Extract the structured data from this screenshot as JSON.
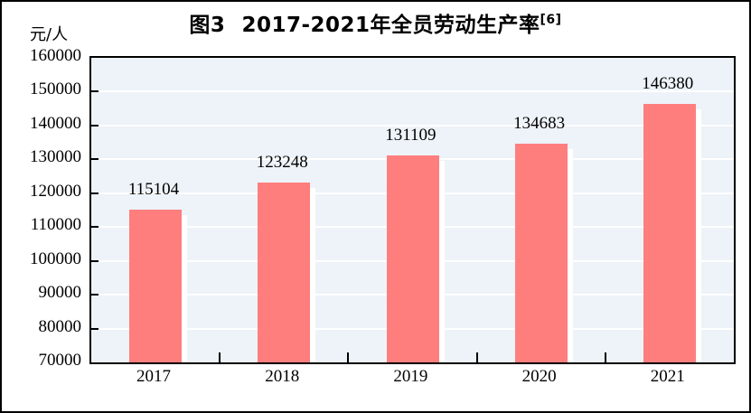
{
  "figure": {
    "title_prefix": "图3",
    "title_main": "2017-2021年全员劳动生产率",
    "title_sup": "[6]",
    "unit_label": "元/人"
  },
  "chart_data": {
    "type": "bar",
    "title": "图3 2017-2021年全员劳动生产率[6]",
    "categories": [
      "2017",
      "2018",
      "2019",
      "2020",
      "2021"
    ],
    "values": [
      115104,
      123248,
      131109,
      134683,
      146380
    ],
    "data_labels": [
      "115104",
      "123248",
      "131109",
      "134683",
      "146380"
    ],
    "xlabel": "",
    "ylabel": "元/人",
    "ylim": [
      70000,
      160000
    ],
    "ytick_step": 10000,
    "yticks": [
      70000,
      80000,
      90000,
      100000,
      110000,
      120000,
      130000,
      140000,
      150000,
      160000
    ],
    "grid": true,
    "legend_position": "none",
    "colors": {
      "bar": "#fe7e7e",
      "bar_shadow": "#ffffff",
      "plot_background": "#edf3f8",
      "gridline": "#ffffff",
      "axis": "#000000",
      "text": "#000000"
    }
  }
}
